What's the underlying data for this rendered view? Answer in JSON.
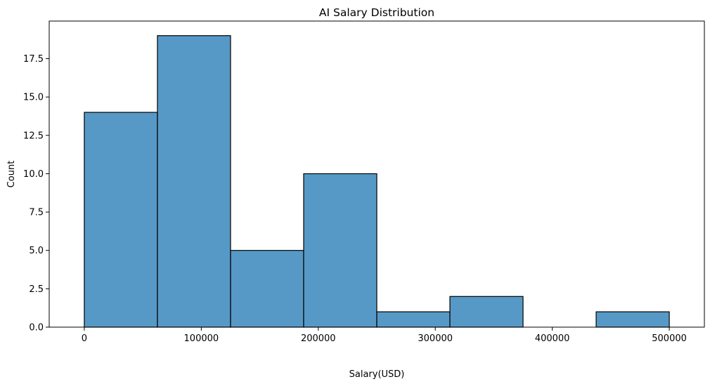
{
  "chart_data": {
    "type": "bar",
    "subtype": "histogram",
    "title": "AI Salary Distribution",
    "xlabel": "Salary(USD)",
    "ylabel": "Count",
    "bins": [
      {
        "start": 0,
        "end": 62500,
        "count": 14
      },
      {
        "start": 62500,
        "end": 125000,
        "count": 19
      },
      {
        "start": 125000,
        "end": 187500,
        "count": 5
      },
      {
        "start": 187500,
        "end": 250000,
        "count": 10
      },
      {
        "start": 250000,
        "end": 312500,
        "count": 1
      },
      {
        "start": 312500,
        "end": 375000,
        "count": 2
      },
      {
        "start": 375000,
        "end": 437500,
        "count": 0
      },
      {
        "start": 437500,
        "end": 500000,
        "count": 1
      }
    ],
    "xlim": [
      -30000,
      530000
    ],
    "ylim": [
      0,
      19.95
    ],
    "xticks": [
      0,
      100000,
      200000,
      300000,
      400000,
      500000
    ],
    "xtick_labels": [
      "0",
      "100000",
      "200000",
      "300000",
      "400000",
      "500000"
    ],
    "yticks": [
      0,
      2.5,
      5,
      7.5,
      10,
      12.5,
      15,
      17.5
    ],
    "ytick_labels": [
      "0.0",
      "2.5",
      "5.0",
      "7.5",
      "10.0",
      "12.5",
      "15.0",
      "17.5"
    ],
    "grid": false,
    "legend": "none",
    "colors": {
      "bar_fill": "#5799c6",
      "bar_edge": "#000000",
      "axes": "#000000"
    }
  }
}
